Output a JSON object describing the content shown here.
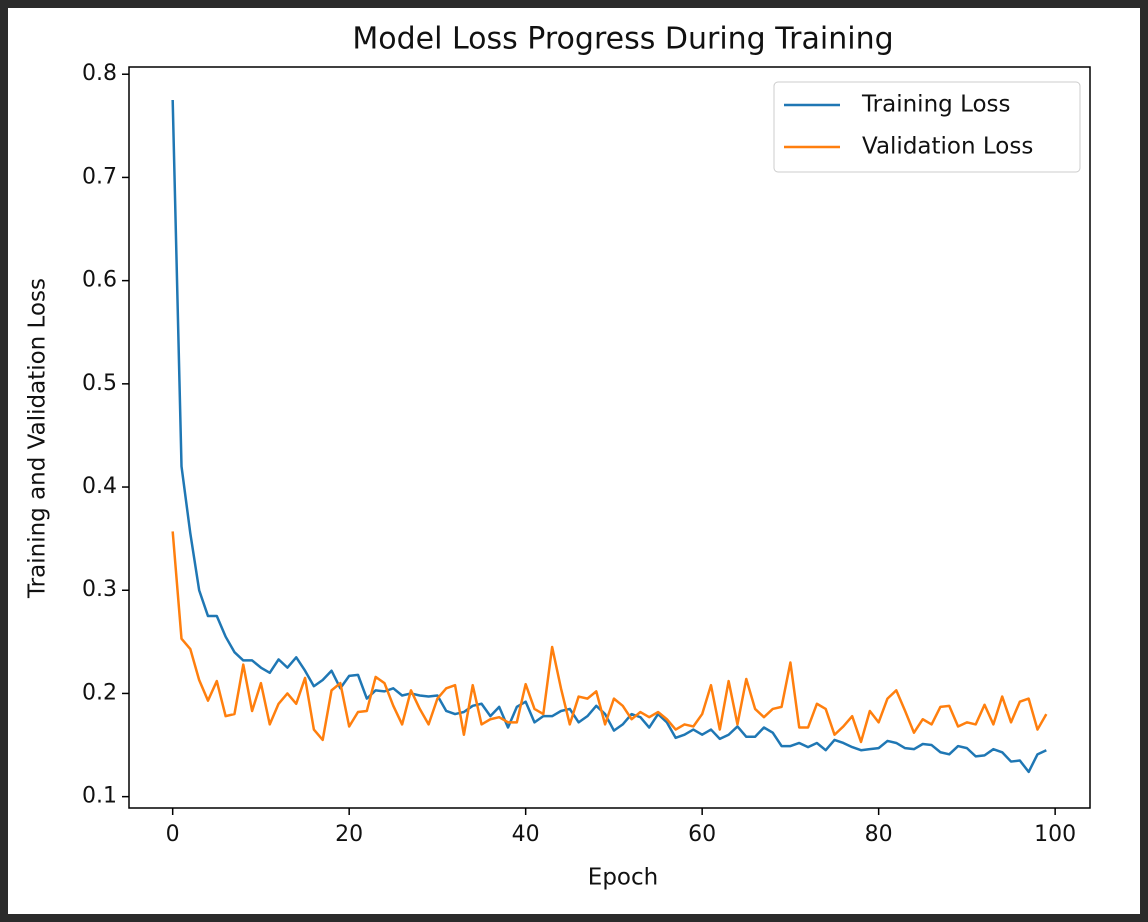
{
  "chart_data": {
    "type": "line",
    "title": "Model Loss Progress During Training",
    "x_label": "Epoch",
    "y_label": "Training and Validation Loss",
    "x": [
      0,
      1,
      2,
      3,
      4,
      5,
      6,
      7,
      8,
      9,
      10,
      11,
      12,
      13,
      14,
      15,
      16,
      17,
      18,
      19,
      20,
      21,
      22,
      23,
      24,
      25,
      26,
      27,
      28,
      29,
      30,
      31,
      32,
      33,
      34,
      35,
      36,
      37,
      38,
      39,
      40,
      41,
      42,
      43,
      44,
      45,
      46,
      47,
      48,
      49,
      50,
      51,
      52,
      53,
      54,
      55,
      56,
      57,
      58,
      59,
      60,
      61,
      62,
      63,
      64,
      65,
      66,
      67,
      68,
      69,
      70,
      71,
      72,
      73,
      74,
      75,
      76,
      77,
      78,
      79,
      80,
      81,
      82,
      83,
      84,
      85,
      86,
      87,
      88,
      89,
      90,
      91,
      92,
      93,
      94,
      95,
      96,
      97,
      98,
      99
    ],
    "series": [
      {
        "name": "Training Loss",
        "color": "#1f77b4",
        "values": [
          0.775,
          0.42,
          0.355,
          0.3,
          0.275,
          0.275,
          0.255,
          0.24,
          0.232,
          0.232,
          0.225,
          0.22,
          0.233,
          0.225,
          0.235,
          0.222,
          0.207,
          0.213,
          0.222,
          0.205,
          0.217,
          0.218,
          0.195,
          0.203,
          0.202,
          0.205,
          0.198,
          0.2,
          0.198,
          0.197,
          0.198,
          0.183,
          0.18,
          0.182,
          0.188,
          0.19,
          0.178,
          0.187,
          0.167,
          0.187,
          0.192,
          0.172,
          0.178,
          0.178,
          0.183,
          0.185,
          0.172,
          0.178,
          0.188,
          0.18,
          0.164,
          0.17,
          0.18,
          0.177,
          0.167,
          0.18,
          0.172,
          0.157,
          0.16,
          0.165,
          0.16,
          0.165,
          0.156,
          0.16,
          0.168,
          0.158,
          0.158,
          0.167,
          0.162,
          0.149,
          0.149,
          0.152,
          0.148,
          0.152,
          0.145,
          0.155,
          0.152,
          0.148,
          0.145,
          0.146,
          0.147,
          0.154,
          0.152,
          0.147,
          0.146,
          0.151,
          0.15,
          0.143,
          0.141,
          0.149,
          0.147,
          0.139,
          0.14,
          0.146,
          0.143,
          0.134,
          0.135,
          0.124,
          0.141,
          0.145
        ]
      },
      {
        "name": "Validation Loss",
        "color": "#ff7f0e",
        "values": [
          0.357,
          0.253,
          0.243,
          0.213,
          0.193,
          0.212,
          0.178,
          0.18,
          0.228,
          0.183,
          0.21,
          0.17,
          0.19,
          0.2,
          0.19,
          0.215,
          0.165,
          0.155,
          0.203,
          0.21,
          0.168,
          0.182,
          0.183,
          0.216,
          0.21,
          0.188,
          0.17,
          0.203,
          0.185,
          0.17,
          0.195,
          0.205,
          0.208,
          0.16,
          0.208,
          0.17,
          0.175,
          0.177,
          0.172,
          0.172,
          0.209,
          0.185,
          0.18,
          0.245,
          0.205,
          0.17,
          0.197,
          0.195,
          0.202,
          0.17,
          0.195,
          0.188,
          0.175,
          0.182,
          0.177,
          0.182,
          0.175,
          0.165,
          0.17,
          0.168,
          0.18,
          0.208,
          0.165,
          0.212,
          0.17,
          0.214,
          0.185,
          0.177,
          0.185,
          0.187,
          0.23,
          0.167,
          0.167,
          0.19,
          0.185,
          0.16,
          0.168,
          0.178,
          0.153,
          0.183,
          0.172,
          0.195,
          0.203,
          0.183,
          0.162,
          0.175,
          0.17,
          0.187,
          0.188,
          0.168,
          0.172,
          0.17,
          0.189,
          0.17,
          0.197,
          0.172,
          0.192,
          0.195,
          0.165,
          0.18
        ]
      }
    ],
    "xlim": [
      -4.95,
      103.95
    ],
    "xticks": [
      0,
      20,
      40,
      60,
      80,
      100
    ],
    "ylim": [
      0.089,
      0.807
    ],
    "yticks": [
      0.1,
      0.2,
      0.3,
      0.4,
      0.5,
      0.6,
      0.7,
      0.8
    ],
    "grid": false,
    "legend": "upper right"
  }
}
